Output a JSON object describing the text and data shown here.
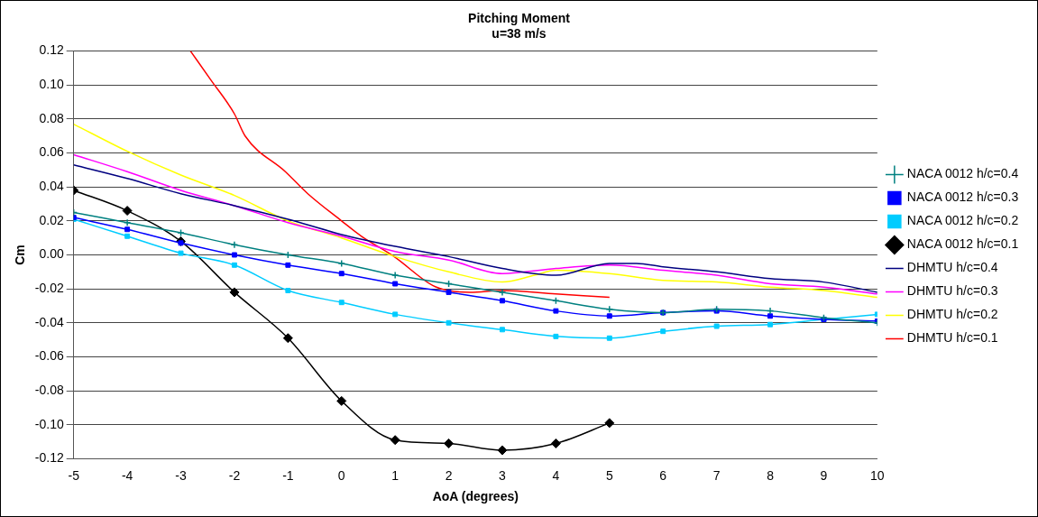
{
  "chart_data": {
    "type": "line",
    "title": "Pitching Moment",
    "subtitle": "u=38 m/s",
    "xlabel": "AoA (degrees)",
    "ylabel": "Cm",
    "xlim": [
      -5,
      10
    ],
    "xticks": [
      -5,
      -4,
      -3,
      -2,
      -1,
      0,
      1,
      2,
      3,
      4,
      5,
      6,
      7,
      8,
      9,
      10
    ],
    "ylim": [
      -0.12,
      0.12
    ],
    "yticks": [
      {
        "value": -0.12,
        "label": "-0.12"
      },
      {
        "value": -0.1,
        "label": "-0.10"
      },
      {
        "value": -0.08,
        "label": "-0.08"
      },
      {
        "value": -0.06,
        "label": "-0.06"
      },
      {
        "value": -0.04,
        "label": "-0.04"
      },
      {
        "value": -0.02,
        "label": "-0.02"
      },
      {
        "value": 0,
        "label": "0.00"
      },
      {
        "value": 0.02,
        "label": "0.02"
      },
      {
        "value": 0.04,
        "label": "0.04"
      },
      {
        "value": 0.06,
        "label": "0.06"
      },
      {
        "value": 0.08,
        "label": "0.08"
      },
      {
        "value": 0.1,
        "label": "0.10"
      },
      {
        "value": 0.12,
        "label": "0.12"
      }
    ],
    "grid": "y",
    "legend": "right",
    "series": [
      {
        "name": "NACA 0012 h/c=0.4",
        "color": "#008080",
        "marker": "cross",
        "x": [
          -5,
          -4,
          -3,
          -2,
          -1,
          0,
          1,
          2,
          3,
          4,
          5,
          6,
          7,
          8,
          9,
          10
        ],
        "values": [
          0.025,
          0.019,
          0.013,
          0.006,
          0.0,
          -0.005,
          -0.012,
          -0.017,
          -0.022,
          -0.027,
          -0.032,
          -0.034,
          -0.032,
          -0.033,
          -0.037,
          -0.04
        ]
      },
      {
        "name": "NACA 0012 h/c=0.3",
        "color": "#0000ff",
        "marker": "square",
        "x": [
          -5,
          -4,
          -3,
          -2,
          -1,
          0,
          1,
          2,
          3,
          4,
          5,
          6,
          7,
          8,
          9,
          10
        ],
        "values": [
          0.022,
          0.015,
          0.007,
          0.0,
          -0.006,
          -0.011,
          -0.017,
          -0.022,
          -0.027,
          -0.033,
          -0.036,
          -0.034,
          -0.033,
          -0.036,
          -0.038,
          -0.039
        ]
      },
      {
        "name": "NACA 0012 h/c=0.2",
        "color": "#00ccff",
        "marker": "square",
        "x": [
          -5,
          -4,
          -3,
          -2,
          -1,
          0,
          1,
          2,
          3,
          4,
          5,
          6,
          7,
          8,
          9,
          10
        ],
        "values": [
          0.021,
          0.011,
          0.001,
          -0.006,
          -0.021,
          -0.028,
          -0.035,
          -0.04,
          -0.044,
          -0.048,
          -0.049,
          -0.045,
          -0.042,
          -0.041,
          -0.038,
          -0.035
        ]
      },
      {
        "name": "NACA 0012 h/c=0.1",
        "color": "#000000",
        "marker": "diamond",
        "x": [
          -5,
          -4,
          -3,
          -2,
          -1,
          0,
          1,
          2,
          3,
          4,
          5
        ],
        "values": [
          0.038,
          0.026,
          0.008,
          -0.022,
          -0.049,
          -0.086,
          -0.109,
          -0.111,
          -0.115,
          -0.111,
          -0.099
        ]
      },
      {
        "name": "DHMTU h/c=0.4",
        "color": "#000080",
        "marker": "none",
        "x": [
          -5,
          -4,
          -3,
          -2,
          -1,
          0,
          1,
          2,
          3,
          4,
          5,
          5.5,
          6,
          7,
          8,
          9,
          10
        ],
        "values": [
          0.053,
          0.045,
          0.036,
          0.029,
          0.021,
          0.012,
          0.005,
          -0.001,
          -0.008,
          -0.012,
          -0.005,
          -0.005,
          -0.007,
          -0.01,
          -0.014,
          -0.016,
          -0.022
        ]
      },
      {
        "name": "DHMTU h/c=0.3",
        "color": "#ff00ff",
        "marker": "none",
        "x": [
          -5,
          -4,
          -3,
          -2,
          -1,
          0,
          1,
          2,
          3,
          4,
          5,
          6,
          7,
          8,
          9,
          10
        ],
        "values": [
          0.059,
          0.049,
          0.038,
          0.029,
          0.019,
          0.011,
          0.002,
          -0.003,
          -0.011,
          -0.008,
          -0.006,
          -0.009,
          -0.012,
          -0.017,
          -0.019,
          -0.023
        ]
      },
      {
        "name": "DHMTU h/c=0.2",
        "color": "#ffff00",
        "marker": "none",
        "x": [
          -5,
          -4,
          -3,
          -2,
          -1,
          0,
          1,
          2,
          3,
          3.6,
          4,
          5,
          6,
          7,
          8,
          9,
          10
        ],
        "values": [
          0.077,
          0.061,
          0.047,
          0.035,
          0.02,
          0.01,
          -0.001,
          -0.01,
          -0.016,
          -0.012,
          -0.009,
          -0.011,
          -0.015,
          -0.016,
          -0.019,
          -0.021,
          -0.025
        ]
      },
      {
        "name": "DHMTU h/c=0.1",
        "color": "#ff0000",
        "marker": "none",
        "x": [
          -2.82,
          -2.44,
          -2,
          -1.8,
          -1.05,
          -0.63,
          0,
          0.37,
          0.98,
          1.7,
          2,
          2.4,
          3,
          4,
          5
        ],
        "values": [
          0.12,
          0.103,
          0.083,
          0.07,
          0.049,
          0.036,
          0.02,
          0.011,
          -0.001,
          -0.018,
          -0.021,
          -0.022,
          -0.021,
          -0.023,
          -0.025
        ]
      }
    ]
  }
}
